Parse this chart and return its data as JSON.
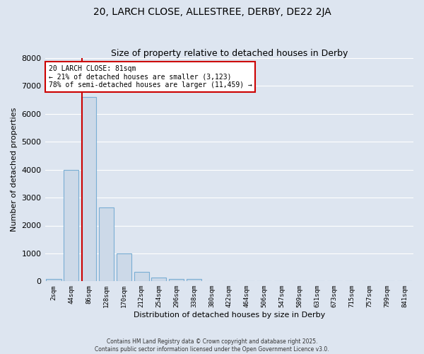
{
  "title1": "20, LARCH CLOSE, ALLESTREE, DERBY, DE22 2JA",
  "title2": "Size of property relative to detached houses in Derby",
  "xlabel": "Distribution of detached houses by size in Derby",
  "ylabel": "Number of detached properties",
  "bar_labels": [
    "2sqm",
    "44sqm",
    "86sqm",
    "128sqm",
    "170sqm",
    "212sqm",
    "254sqm",
    "296sqm",
    "338sqm",
    "380sqm",
    "422sqm",
    "464sqm",
    "506sqm",
    "547sqm",
    "589sqm",
    "631sqm",
    "673sqm",
    "715sqm",
    "757sqm",
    "799sqm",
    "841sqm"
  ],
  "bar_values": [
    80,
    4000,
    6600,
    2650,
    1000,
    330,
    130,
    80,
    80,
    0,
    0,
    0,
    0,
    0,
    0,
    0,
    0,
    0,
    0,
    0,
    0
  ],
  "bar_color": "#ccd9e8",
  "bar_edge_color": "#7aaed4",
  "bar_width": 0.85,
  "ylim": [
    0,
    8000
  ],
  "red_line_x": 1.62,
  "annotation_text": "20 LARCH CLOSE: 81sqm\n← 21% of detached houses are smaller (3,123)\n78% of semi-detached houses are larger (11,459) →",
  "annotation_box_color": "#ffffff",
  "annotation_box_edge": "#cc0000",
  "footer1": "Contains HM Land Registry data © Crown copyright and database right 2025.",
  "footer2": "Contains public sector information licensed under the Open Government Licence v3.0.",
  "background_color": "#dde5f0",
  "grid_color": "#ffffff",
  "title1_fontsize": 10,
  "title2_fontsize": 9,
  "yticks": [
    0,
    1000,
    2000,
    3000,
    4000,
    5000,
    6000,
    7000,
    8000
  ]
}
